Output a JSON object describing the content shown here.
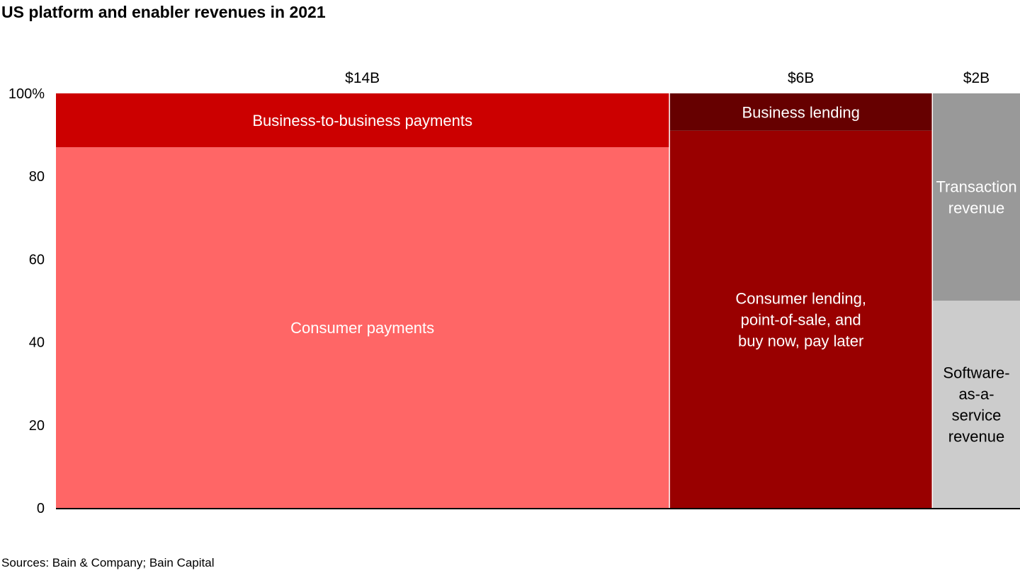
{
  "title": "US platform and enabler revenues in 2021",
  "source": "Sources: Bain & Company; Bain Capital",
  "chart_data": {
    "type": "marimekko",
    "title": "US platform and enabler revenues in 2021",
    "ylim": [
      0,
      100
    ],
    "yticks": [
      "0",
      "20",
      "40",
      "60",
      "80",
      "100%"
    ],
    "grid": false,
    "columns": [
      {
        "total_label": "$14B",
        "total": 14,
        "segments": [
          {
            "name": "Consumer payments",
            "value": 87,
            "color": "#FF6666",
            "text_color": "#FFFFFF"
          },
          {
            "name": "Business-to-business payments",
            "value": 13,
            "color": "#CC0000",
            "text_color": "#FFFFFF"
          }
        ]
      },
      {
        "total_label": "$6B",
        "total": 6,
        "segments": [
          {
            "name": "Consumer lending, point-of-sale, and buy now, pay later",
            "lines": [
              "Consumer lending,",
              "point-of-sale, and",
              "buy now, pay later"
            ],
            "value": 91,
            "color": "#990000",
            "text_color": "#FFFFFF"
          },
          {
            "name": "Business lending",
            "value": 9,
            "color": "#660000",
            "text_color": "#FFFFFF"
          }
        ]
      },
      {
        "total_label": "$2B",
        "total": 2,
        "segments": [
          {
            "name": "Software-as-a-service revenue",
            "lines": [
              "Software-",
              "as-a-",
              "service",
              "revenue"
            ],
            "value": 50,
            "color": "#CCCCCC",
            "text_color": "#000000"
          },
          {
            "name": "Transaction revenue",
            "lines": [
              "Transaction",
              "revenue"
            ],
            "value": 50,
            "color": "#999999",
            "text_color": "#FFFFFF"
          }
        ]
      }
    ]
  }
}
